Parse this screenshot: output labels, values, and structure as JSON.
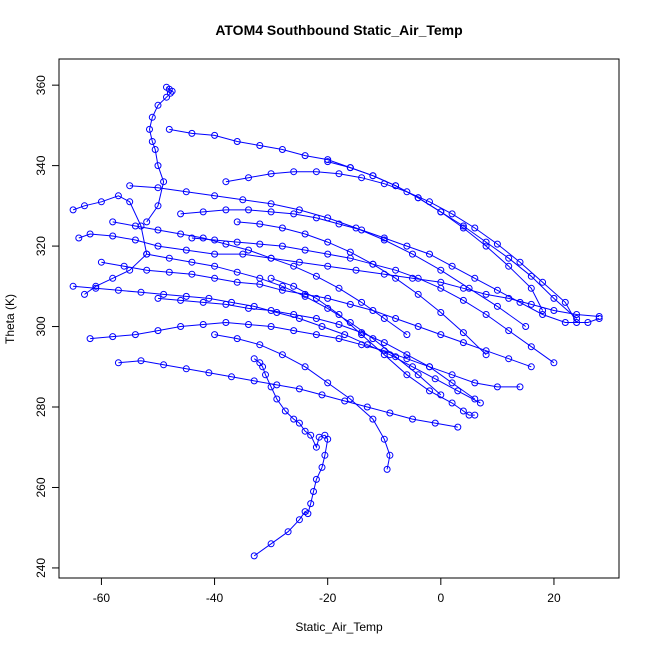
{
  "chart_data": {
    "type": "scatter",
    "title": "ATOM4 Southbound Static_Air_Temp",
    "xlabel": "Static_Air_Temp",
    "ylabel": "Theta (K)",
    "xlim": [
      -67.5,
      31.5
    ],
    "ylim": [
      237.5,
      366.5
    ],
    "xticks": [
      -60,
      -40,
      -20,
      0,
      20
    ],
    "yticks": [
      240,
      260,
      280,
      300,
      320,
      340,
      360
    ],
    "grid": false,
    "legend": "none",
    "color": "#0000ff",
    "series": [
      {
        "x": [
          -33,
          -30,
          -27,
          -25,
          -24,
          -23.5,
          -23,
          -22.5,
          -22,
          -21,
          -20.5,
          -20,
          -20.5,
          -21.5,
          -22,
          -23,
          -24,
          -25,
          -26,
          -27.5,
          -29,
          -30,
          -31,
          -31.5,
          -32,
          -33
        ],
        "y": [
          243,
          246,
          249,
          252,
          254,
          253.5,
          256,
          259,
          262,
          265,
          268,
          272,
          273,
          272.5,
          270,
          273,
          274,
          276,
          277,
          279,
          282,
          285,
          288,
          290,
          291,
          292
        ]
      },
      {
        "x": [
          -48.5,
          -48,
          -47.5,
          -47.8,
          -48.5,
          -50,
          -51,
          -51.5,
          -51,
          -50.5,
          -50,
          -49,
          -50,
          -52
        ],
        "y": [
          359.5,
          359,
          358.5,
          358,
          357,
          355,
          352,
          349,
          346,
          344,
          340,
          336,
          330,
          326
        ]
      },
      {
        "x": [
          -65,
          -63,
          -60,
          -57,
          -55,
          -53,
          -52,
          -55,
          -58,
          -61,
          -63
        ],
        "y": [
          329,
          330,
          331,
          332.5,
          331,
          325,
          318,
          314,
          312,
          310,
          308
        ]
      },
      {
        "x": [
          -64,
          -62,
          -58,
          -54,
          -50,
          -45,
          -40,
          -35,
          -30,
          -25,
          -20,
          -15,
          -10,
          -5,
          0,
          4,
          8,
          12,
          16,
          20,
          24,
          28
        ],
        "y": [
          322,
          323,
          322.5,
          321.5,
          320,
          319,
          318,
          318,
          317,
          316,
          315,
          314,
          313,
          312,
          311,
          309.5,
          308,
          307,
          305.5,
          304,
          303,
          302.5
        ]
      },
      {
        "x": [
          -48,
          -44,
          -40,
          -36,
          -32,
          -28,
          -24,
          -20,
          -16,
          -12,
          -8,
          -4,
          0,
          4,
          8,
          12,
          16,
          20,
          24
        ],
        "y": [
          349,
          348,
          347.5,
          346,
          345,
          344,
          342.5,
          341.5,
          339.5,
          337.5,
          335,
          332,
          328.5,
          325,
          321,
          317,
          312.5,
          307,
          302
        ]
      },
      {
        "x": [
          -46,
          -42,
          -38,
          -34,
          -30,
          -26,
          -22,
          -18,
          -14,
          -10,
          -6,
          -2,
          2,
          6,
          10,
          14,
          18,
          22,
          26,
          28
        ],
        "y": [
          328,
          328.5,
          329,
          329,
          328.5,
          328,
          327,
          325.5,
          324,
          322,
          320,
          318,
          315,
          312,
          309,
          306,
          303,
          301,
          301,
          302
        ]
      },
      {
        "x": [
          -60,
          -56,
          -52,
          -48,
          -44,
          -40,
          -36,
          -32,
          -28,
          -24,
          -20,
          -16,
          -12,
          -8,
          -4,
          0,
          4,
          8,
          12,
          16
        ],
        "y": [
          316,
          315,
          314,
          313.5,
          313,
          312,
          311,
          310.5,
          309,
          308,
          307,
          305.5,
          304,
          302,
          300,
          298,
          296,
          294,
          292,
          290
        ]
      },
      {
        "x": [
          -62,
          -58,
          -54,
          -50,
          -46,
          -42,
          -38,
          -34,
          -30,
          -26,
          -22,
          -18,
          -14,
          -10,
          -6,
          -2,
          2,
          6,
          10,
          14
        ],
        "y": [
          297,
          297.5,
          298,
          299,
          300,
          300.5,
          301,
          300.5,
          300,
          299,
          298,
          297,
          295.5,
          294,
          292,
          290,
          288,
          286,
          285,
          285
        ]
      },
      {
        "x": [
          -57,
          -53,
          -49,
          -45,
          -41,
          -37,
          -33,
          -29,
          -25,
          -21,
          -17,
          -13,
          -9,
          -5,
          -1,
          3
        ],
        "y": [
          291,
          291.5,
          290.5,
          289.5,
          288.5,
          287.5,
          286.5,
          285.5,
          284.5,
          283,
          281.5,
          280,
          278.5,
          277,
          276,
          275
        ]
      },
      {
        "x": [
          -50,
          -46,
          -42,
          -38,
          -34,
          -30,
          -26,
          -22,
          -18,
          -14,
          -10,
          -6,
          -2,
          2,
          6
        ],
        "y": [
          307,
          306.5,
          306,
          305.5,
          304.5,
          304,
          303,
          302,
          300.5,
          298.5,
          296,
          293,
          290,
          286,
          282
        ]
      },
      {
        "x": [
          -40,
          -36,
          -32,
          -28,
          -24,
          -20,
          -16,
          -12,
          -10,
          -9,
          -9.5
        ],
        "y": [
          298,
          297,
          295.5,
          293,
          290,
          286,
          282,
          277,
          272,
          268,
          264.5
        ]
      },
      {
        "x": [
          -55,
          -50,
          -45,
          -40,
          -35,
          -30,
          -25,
          -20,
          -15,
          -10,
          -5,
          0,
          5,
          10,
          15
        ],
        "y": [
          335,
          334.5,
          333.5,
          332.5,
          331.5,
          330.5,
          329,
          327,
          324.5,
          321.5,
          318,
          314,
          309.5,
          305,
          300
        ]
      },
      {
        "x": [
          -38,
          -34,
          -30,
          -26,
          -22,
          -18,
          -14,
          -10,
          -6,
          -2,
          2,
          6,
          10,
          14,
          18,
          22,
          24
        ],
        "y": [
          336,
          337,
          338,
          338.5,
          338.5,
          338,
          337,
          335.5,
          333.5,
          331,
          328,
          324.5,
          320.5,
          316,
          311,
          306,
          301
        ]
      },
      {
        "x": [
          -65,
          -61,
          -57,
          -53,
          -49,
          -45,
          -41,
          -37,
          -33,
          -29,
          -25,
          -21,
          -17,
          -13,
          -9,
          -5,
          -1,
          3,
          7
        ],
        "y": [
          310,
          309.5,
          309,
          308.5,
          308,
          307.5,
          307,
          306,
          305,
          303.5,
          302,
          300,
          298,
          295.5,
          293,
          290,
          287,
          284,
          281
        ]
      },
      {
        "x": [
          -44,
          -40,
          -36,
          -32,
          -28,
          -24,
          -20,
          -16,
          -12,
          -8,
          -4,
          0,
          4,
          8,
          12,
          16,
          20
        ],
        "y": [
          322,
          321.5,
          321,
          320.5,
          320,
          319,
          318,
          317,
          315.5,
          314,
          312,
          309.5,
          306.5,
          303,
          299,
          295,
          291
        ]
      },
      {
        "x": [
          -30,
          -26,
          -22,
          -18,
          -14,
          -10,
          -6,
          -2,
          2,
          4,
          5,
          6
        ],
        "y": [
          312,
          310,
          307,
          303,
          298,
          293,
          288,
          284,
          281,
          279,
          278,
          278
        ]
      },
      {
        "x": [
          -52,
          -48,
          -44,
          -40,
          -36,
          -32,
          -28,
          -24,
          -20,
          -16,
          -12,
          -8,
          -4,
          0
        ],
        "y": [
          318,
          317,
          316,
          315,
          313.5,
          312,
          310,
          307.5,
          304.5,
          301,
          297,
          292.5,
          288,
          283
        ]
      },
      {
        "x": [
          -36,
          -32,
          -28,
          -24,
          -20,
          -16,
          -12,
          -8,
          -4,
          0,
          4,
          8
        ],
        "y": [
          326,
          325.5,
          324.5,
          323,
          321,
          318.5,
          315.5,
          312,
          308,
          303.5,
          298.5,
          293
        ]
      },
      {
        "x": [
          -20,
          -16,
          -12,
          -8,
          -4,
          0,
          4,
          8,
          12,
          16,
          18
        ],
        "y": [
          341,
          339.5,
          337.5,
          335,
          332,
          328.5,
          324.5,
          320,
          315,
          309.5,
          304
        ]
      },
      {
        "x": [
          -58,
          -54,
          -50,
          -46,
          -42,
          -38,
          -34,
          -30,
          -26,
          -22,
          -18,
          -14,
          -10,
          -6
        ],
        "y": [
          326,
          325,
          324,
          323,
          322,
          320.5,
          319,
          317,
          315,
          312.5,
          309.5,
          306,
          302,
          298
        ]
      }
    ]
  }
}
